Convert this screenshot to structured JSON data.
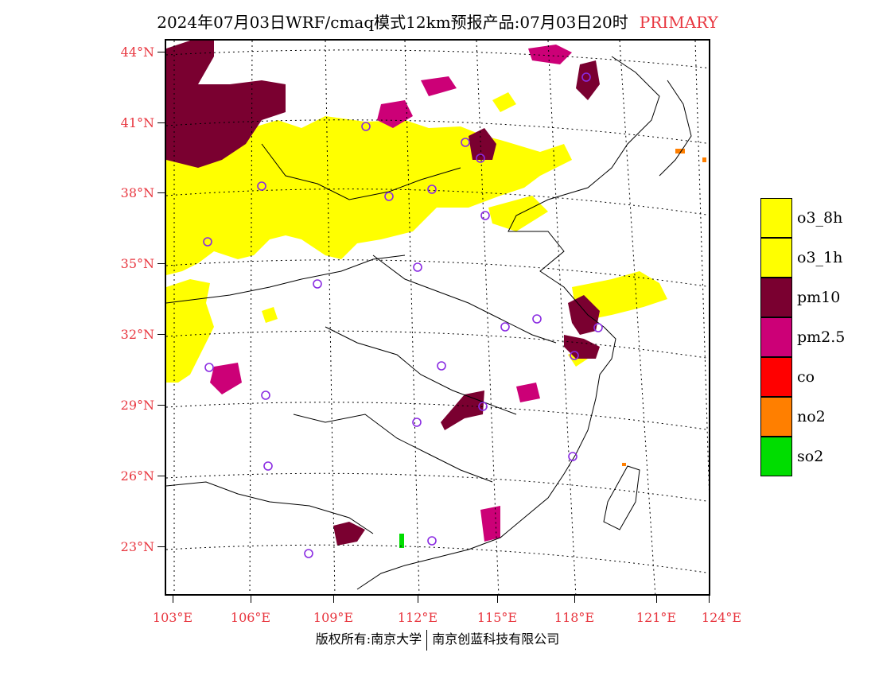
{
  "title": {
    "main": "2024年07月03日WRF/cmaq模式12km预报产品:07月03日20时",
    "tag": "PRIMARY"
  },
  "colors": {
    "o3_8h": "#ffff00",
    "o3_1h": "#ffff00",
    "pm10": "#7a0030",
    "pm2_5": "#cc0077",
    "co": "#ff0000",
    "no2": "#ff7f00",
    "so2": "#00dd00",
    "station": "#8a2be2",
    "axis_label": "#e8363f"
  },
  "lat_labels": [
    "44°N",
    "41°N",
    "38°N",
    "35°N",
    "32°N",
    "29°N",
    "26°N",
    "23°N"
  ],
  "lon_labels": [
    "103°E",
    "106°E",
    "109°E",
    "112°E",
    "115°E",
    "118°E",
    "121°E",
    "124°E"
  ],
  "legend": [
    {
      "label": "o3_8h",
      "color": "#ffff00"
    },
    {
      "label": "o3_1h",
      "color": "#ffff00"
    },
    {
      "label": "pm10",
      "color": "#7a0030"
    },
    {
      "label": "pm2.5",
      "color": "#cc0077"
    },
    {
      "label": "co",
      "color": "#ff0000"
    },
    {
      "label": "no2",
      "color": "#ff7f00"
    },
    {
      "label": "so2",
      "color": "#00dd00"
    }
  ],
  "footer": {
    "left": "版权所有:南京大学",
    "right": "南京创蓝科技有限公司"
  }
}
